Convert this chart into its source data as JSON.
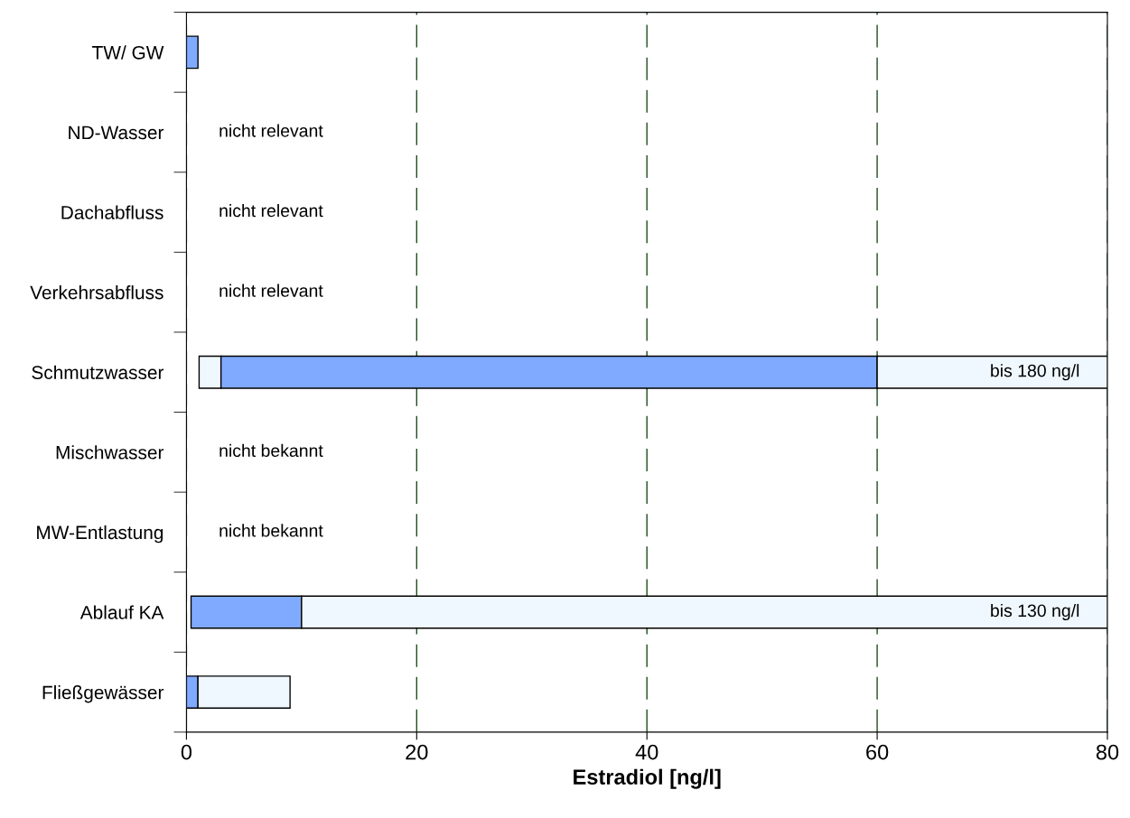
{
  "chart_data": {
    "type": "bar",
    "orientation": "horizontal",
    "xlabel": "Estradiol [ng/l]",
    "categories": [
      "TW/ GW",
      "ND-Wasser",
      "Dachabfluss",
      "Verkehrsabfluss",
      "Schmutzwasser",
      "Mischwasser",
      "MW-Entlastung",
      "Ablauf KA",
      "Fließgewässer"
    ],
    "series": [
      {
        "color": "#f0f8ff",
        "base": [
          null,
          null,
          null,
          null,
          1.1,
          null,
          null,
          null,
          null
        ],
        "values": [
          null,
          null,
          null,
          null,
          1.9,
          null,
          null,
          null,
          null
        ]
      },
      {
        "color": "#80aaff",
        "base": [
          0,
          null,
          null,
          null,
          3,
          null,
          null,
          0.4,
          0
        ],
        "values": [
          1,
          null,
          null,
          null,
          57,
          null,
          null,
          9.6,
          1
        ]
      },
      {
        "color": "#f0f8ff",
        "base": [
          null,
          null,
          null,
          null,
          60,
          null,
          null,
          10,
          1
        ],
        "values": [
          null,
          null,
          null,
          null,
          20,
          null,
          null,
          70,
          8
        ]
      }
    ],
    "xlim": [
      0,
      80
    ],
    "xticks": [
      0,
      20,
      40,
      60,
      80
    ],
    "grid": "x",
    "legend": false,
    "annotations": [
      "nicht relevant",
      "nicht relevant",
      "nicht relevant",
      "nicht bekannt",
      "nicht bekannt",
      "bis 180 ng/l",
      "bis 130 ng/l"
    ]
  }
}
